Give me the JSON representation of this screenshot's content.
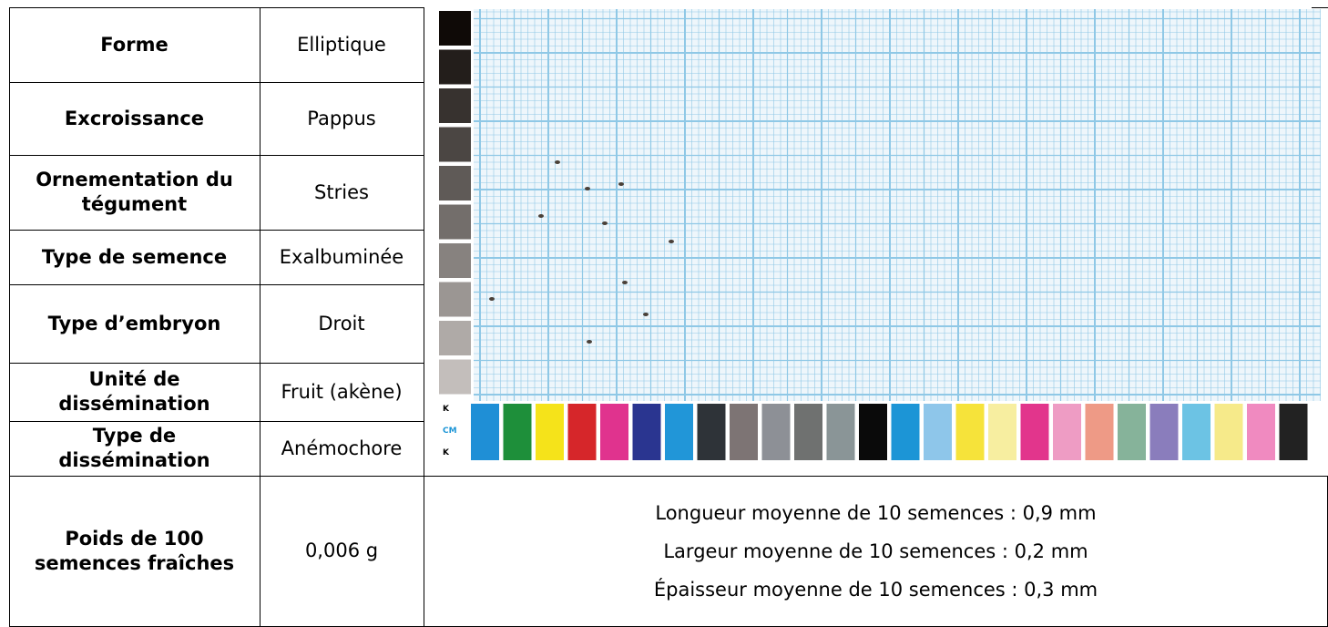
{
  "table": {
    "rows": [
      [
        "Forme",
        "Elliptique"
      ],
      [
        "Excroissance",
        "Pappus"
      ],
      [
        "Ornementation du tégument",
        "Stries"
      ],
      [
        "Type de semence",
        "Exalbuminée"
      ],
      [
        "Type d’embryon",
        "Droit"
      ],
      [
        "Unité de dissémination",
        "Fruit (akène)"
      ],
      [
        "Type de dissémination",
        "Anémochore"
      ],
      [
        "Poids de 100 semences fraîches",
        "0,006 g"
      ]
    ]
  },
  "colorbar_labels": [
    "K",
    "CM",
    "K"
  ],
  "measurements": [
    "Longueur moyenne de 10 semences : 0,9 mm",
    "Largeur moyenne de 10 semences : 0,2 mm",
    "Épaisseur moyenne de 10 semences : 0,3 mm"
  ]
}
